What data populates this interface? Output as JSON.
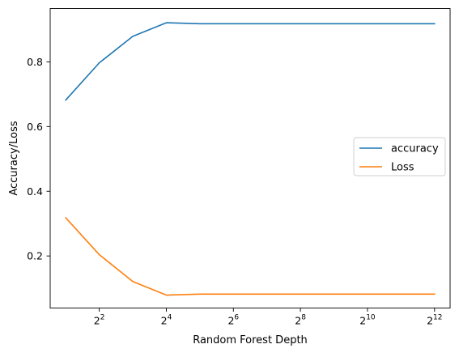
{
  "chart_data": {
    "type": "line",
    "title": "",
    "xlabel": "Random Forest Depth",
    "ylabel": "Accuracy/Loss",
    "x_scale": "log2",
    "x": [
      2,
      4,
      8,
      16,
      32,
      64,
      128,
      256,
      512,
      1024,
      2048,
      4096
    ],
    "xlim": [
      1.45,
      5650
    ],
    "ylim": [
      0.039,
      0.965
    ],
    "x_ticks": [
      {
        "value": 4,
        "base": "2",
        "exp": "2"
      },
      {
        "value": 16,
        "base": "2",
        "exp": "4"
      },
      {
        "value": 64,
        "base": "2",
        "exp": "6"
      },
      {
        "value": 256,
        "base": "2",
        "exp": "8"
      },
      {
        "value": 1024,
        "base": "2",
        "exp": "10"
      },
      {
        "value": 4096,
        "base": "2",
        "exp": "12"
      }
    ],
    "y_ticks": [
      {
        "value": 0.2,
        "label": "0.2"
      },
      {
        "value": 0.4,
        "label": "0.4"
      },
      {
        "value": 0.6,
        "label": "0.6"
      },
      {
        "value": 0.8,
        "label": "0.8"
      }
    ],
    "series": [
      {
        "name": "accuracy",
        "color": "#1f77b4",
        "values": [
          0.682,
          0.797,
          0.879,
          0.921,
          0.918,
          0.918,
          0.918,
          0.918,
          0.918,
          0.918,
          0.918,
          0.918
        ]
      },
      {
        "name": "Loss",
        "color": "#ff7f0e",
        "values": [
          0.318,
          0.204,
          0.121,
          0.079,
          0.082,
          0.082,
          0.082,
          0.082,
          0.082,
          0.082,
          0.082,
          0.082
        ]
      }
    ],
    "grid": false,
    "legend_position": "center-right"
  }
}
